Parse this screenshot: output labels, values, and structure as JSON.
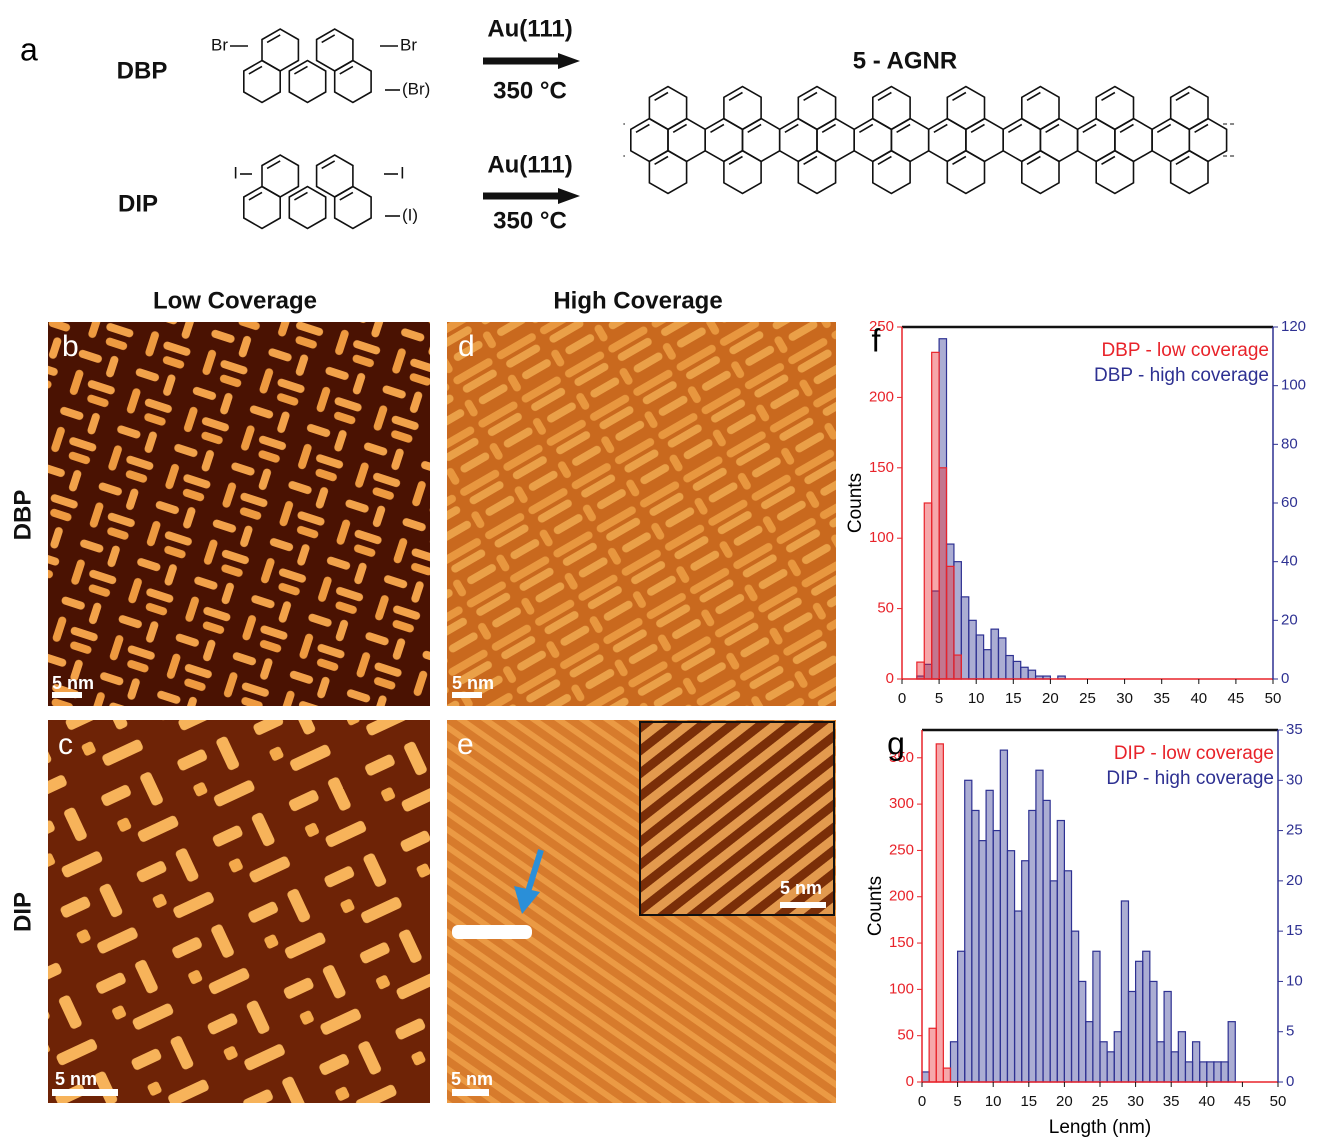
{
  "scheme": {
    "label": "a",
    "precursors": [
      {
        "name": "DBP",
        "substituents": [
          "Br",
          "Br",
          "(Br)"
        ]
      },
      {
        "name": "DIP",
        "substituents": [
          "I",
          "I",
          "(I)"
        ]
      }
    ],
    "conditions": [
      {
        "substrate": "Au(111)",
        "temperature": "350 °C"
      },
      {
        "substrate": "Au(111)",
        "temperature": "350 °C"
      }
    ],
    "product": "5 - AGNR"
  },
  "columns": [
    "Low Coverage",
    "High Coverage"
  ],
  "rows": [
    "DBP",
    "DIP"
  ],
  "images": [
    {
      "label": "b",
      "scale_bar": "5 nm"
    },
    {
      "label": "d",
      "scale_bar": "5 nm"
    },
    {
      "label": "c",
      "scale_bar": "5 nm"
    },
    {
      "label": "e",
      "scale_bar": "5 nm",
      "inset_scale_bar": "5 nm"
    }
  ],
  "chart_data": [
    {
      "type": "histogram",
      "label": "f",
      "ylabel": "Counts",
      "xlim": [
        0,
        50
      ],
      "xticks": [
        0,
        5,
        10,
        15,
        20,
        25,
        30,
        35,
        40,
        45,
        50
      ],
      "ylim": [
        0,
        250
      ],
      "yticks": [
        0,
        50,
        100,
        150,
        200,
        250
      ],
      "y2lim": [
        0,
        120
      ],
      "y2ticks": [
        0,
        20,
        40,
        60,
        80,
        100,
        120
      ],
      "series": [
        {
          "name": "DBP - low coverage",
          "color": "#e8232a",
          "bins": [
            2,
            3,
            4,
            5,
            6,
            7,
            8
          ],
          "values": [
            12,
            125,
            232,
            150,
            80,
            17
          ]
        },
        {
          "name": "DBP - high coverage",
          "color": "#2e3192",
          "axis": "y2",
          "bins": [
            2,
            3,
            4,
            5,
            6,
            7,
            8,
            9,
            10,
            11,
            12,
            13,
            14,
            15,
            16,
            17,
            18,
            19,
            20,
            21,
            22
          ],
          "values": [
            1,
            5,
            30,
            116,
            46,
            40,
            28,
            20,
            15,
            10,
            17,
            14,
            8,
            6,
            4,
            3,
            1,
            1,
            0,
            1
          ]
        }
      ]
    },
    {
      "type": "histogram",
      "label": "g",
      "ylabel": "Counts",
      "xlabel": "Length (nm)",
      "xlim": [
        0,
        50
      ],
      "xticks": [
        0,
        5,
        10,
        15,
        20,
        25,
        30,
        35,
        40,
        45,
        50
      ],
      "ylim": [
        0,
        380
      ],
      "yticks": [
        0,
        50,
        100,
        150,
        200,
        250,
        300,
        350
      ],
      "y2lim": [
        0,
        35
      ],
      "y2ticks": [
        0,
        5,
        10,
        15,
        20,
        25,
        30,
        35
      ],
      "series": [
        {
          "name": "DIP - low coverage",
          "color": "#e8232a",
          "bins": [
            1,
            2,
            3,
            4
          ],
          "values": [
            58,
            365,
            15
          ]
        },
        {
          "name": "DIP - high coverage",
          "color": "#2e3192",
          "axis": "y2",
          "bins": [
            0,
            1,
            2,
            3,
            4,
            5,
            6,
            7,
            8,
            9,
            10,
            11,
            12,
            13,
            14,
            15,
            16,
            17,
            18,
            19,
            20,
            21,
            22,
            23,
            24,
            25,
            26,
            27,
            28,
            29,
            30,
            31,
            32,
            33,
            34,
            35,
            36,
            37,
            38,
            39,
            40,
            41,
            42,
            43,
            44
          ],
          "values": [
            1,
            0,
            0,
            0,
            4,
            13,
            30,
            27,
            24,
            29,
            25,
            33,
            23,
            17,
            22,
            27,
            31,
            28,
            20,
            26,
            21,
            15,
            10,
            6,
            13,
            4,
            3,
            5,
            18,
            9,
            12,
            13,
            10,
            4,
            9,
            3,
            5,
            2,
            4,
            2,
            2,
            2,
            2,
            6
          ]
        }
      ]
    }
  ]
}
